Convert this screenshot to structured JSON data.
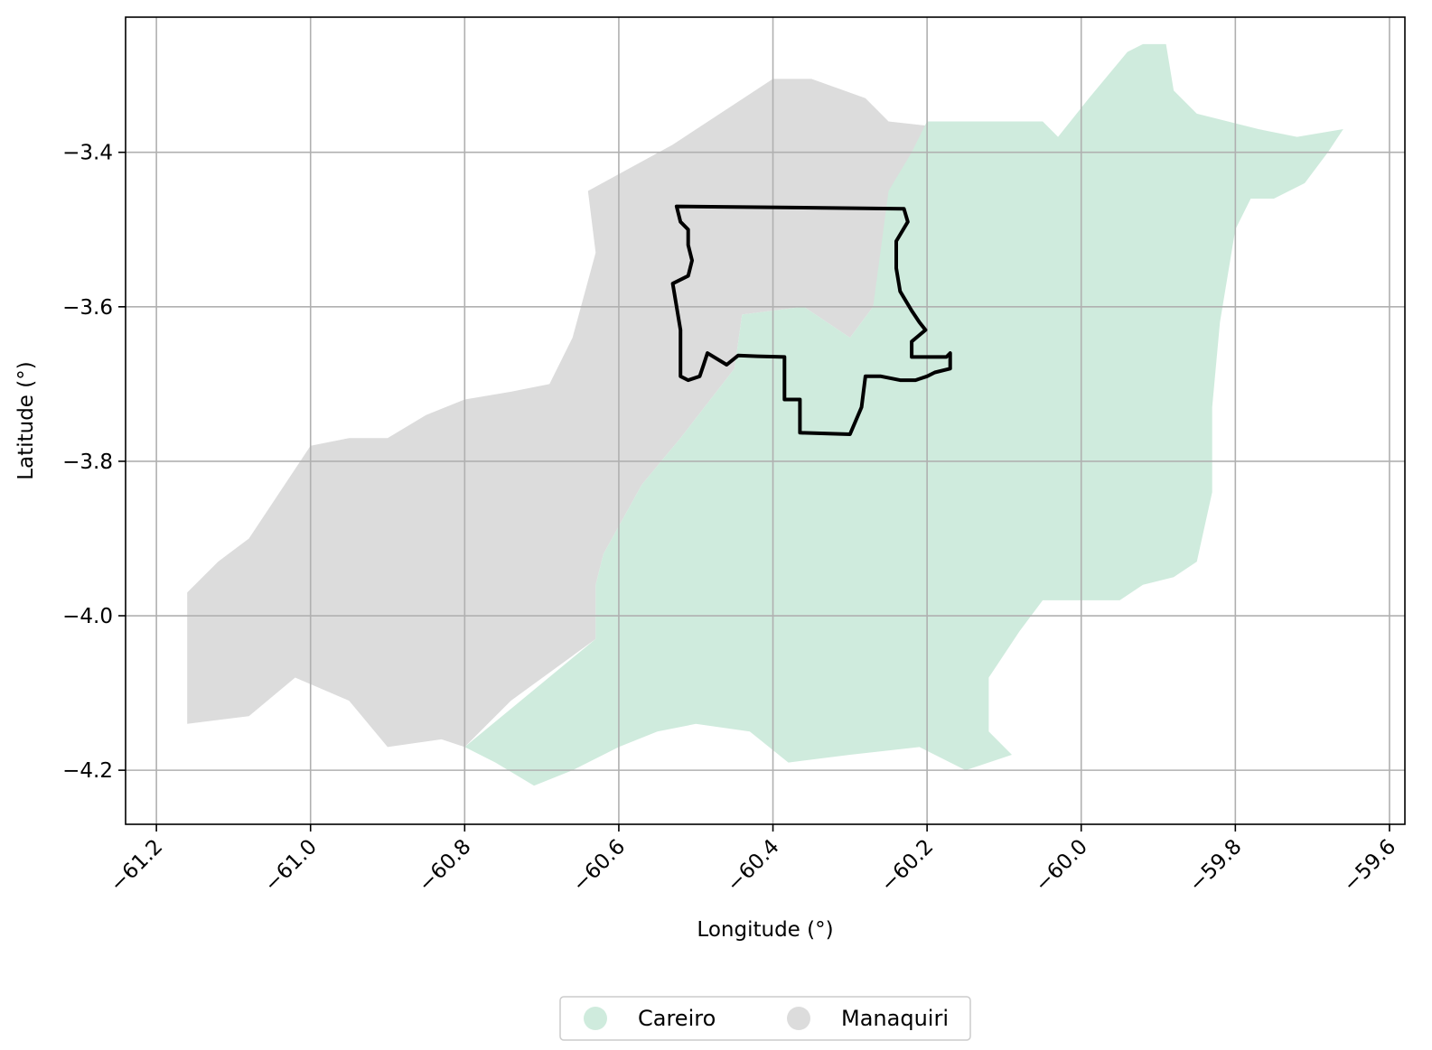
{
  "chart_data": {
    "type": "map",
    "xlabel": "Longitude (°)",
    "ylabel": "Latitude (°)",
    "xlim": [
      -61.24,
      -59.58
    ],
    "ylim": [
      -4.27,
      -3.225
    ],
    "xticks": [
      -61.2,
      -61.0,
      -60.8,
      -60.6,
      -60.4,
      -60.2,
      -60.0,
      -59.8,
      -59.6
    ],
    "yticks": [
      -3.4,
      -3.6,
      -3.8,
      -4.0,
      -4.2
    ],
    "xtick_labels": [
      "−61.2",
      "−61.0",
      "−60.8",
      "−60.6",
      "−60.4",
      "−60.2",
      "−60.0",
      "−59.8",
      "−59.6"
    ],
    "ytick_labels": [
      "−3.4",
      "−3.6",
      "−3.8",
      "−4.0",
      "−4.2"
    ],
    "grid": true,
    "legend_position": "bottom-center",
    "series": [
      {
        "name": "Manaquiri",
        "color": "#dcdcdc",
        "polygon": [
          [
            -60.64,
            -3.45
          ],
          [
            -60.53,
            -3.39
          ],
          [
            -60.4,
            -3.305
          ],
          [
            -60.35,
            -3.305
          ],
          [
            -60.28,
            -3.33
          ],
          [
            -60.25,
            -3.36
          ],
          [
            -60.16,
            -3.37
          ],
          [
            -60.16,
            -3.39
          ],
          [
            -60.24,
            -3.46
          ],
          [
            -60.27,
            -3.6
          ],
          [
            -60.3,
            -3.64
          ],
          [
            -60.36,
            -3.6
          ],
          [
            -60.44,
            -3.61
          ],
          [
            -60.45,
            -3.68
          ],
          [
            -60.52,
            -3.77
          ],
          [
            -60.57,
            -3.83
          ],
          [
            -60.62,
            -3.92
          ],
          [
            -60.63,
            -3.96
          ],
          [
            -60.63,
            -4.03
          ],
          [
            -60.74,
            -4.11
          ],
          [
            -60.8,
            -4.17
          ],
          [
            -60.83,
            -4.16
          ],
          [
            -60.9,
            -4.17
          ],
          [
            -60.95,
            -4.11
          ],
          [
            -61.02,
            -4.08
          ],
          [
            -61.08,
            -4.13
          ],
          [
            -61.16,
            -4.14
          ],
          [
            -61.16,
            -3.97
          ],
          [
            -61.12,
            -3.93
          ],
          [
            -61.08,
            -3.9
          ],
          [
            -61.04,
            -3.84
          ],
          [
            -61.0,
            -3.78
          ],
          [
            -60.95,
            -3.77
          ],
          [
            -60.9,
            -3.77
          ],
          [
            -60.85,
            -3.74
          ],
          [
            -60.8,
            -3.72
          ],
          [
            -60.74,
            -3.71
          ],
          [
            -60.69,
            -3.7
          ],
          [
            -60.66,
            -3.64
          ],
          [
            -60.63,
            -3.53
          ]
        ]
      },
      {
        "name": "Careiro",
        "color": "#cfebdd",
        "polygon": [
          [
            -60.25,
            -3.45
          ],
          [
            -60.22,
            -3.4
          ],
          [
            -60.2,
            -3.36
          ],
          [
            -60.05,
            -3.36
          ],
          [
            -60.03,
            -3.38
          ],
          [
            -59.99,
            -3.33
          ],
          [
            -59.94,
            -3.27
          ],
          [
            -59.92,
            -3.26
          ],
          [
            -59.89,
            -3.26
          ],
          [
            -59.88,
            -3.32
          ],
          [
            -59.85,
            -3.35
          ],
          [
            -59.77,
            -3.37
          ],
          [
            -59.72,
            -3.38
          ],
          [
            -59.66,
            -3.37
          ],
          [
            -59.68,
            -3.4
          ],
          [
            -59.71,
            -3.44
          ],
          [
            -59.75,
            -3.46
          ],
          [
            -59.78,
            -3.46
          ],
          [
            -59.8,
            -3.5
          ],
          [
            -59.82,
            -3.62
          ],
          [
            -59.83,
            -3.73
          ],
          [
            -59.83,
            -3.84
          ],
          [
            -59.85,
            -3.93
          ],
          [
            -59.88,
            -3.95
          ],
          [
            -59.92,
            -3.96
          ],
          [
            -59.95,
            -3.98
          ],
          [
            -59.99,
            -3.98
          ],
          [
            -60.05,
            -3.98
          ],
          [
            -60.08,
            -4.02
          ],
          [
            -60.12,
            -4.08
          ],
          [
            -60.12,
            -4.15
          ],
          [
            -60.09,
            -4.18
          ],
          [
            -60.15,
            -4.2
          ],
          [
            -60.19,
            -4.18
          ],
          [
            -60.21,
            -4.17
          ],
          [
            -60.3,
            -4.18
          ],
          [
            -60.38,
            -4.19
          ],
          [
            -60.43,
            -4.15
          ],
          [
            -60.5,
            -4.14
          ],
          [
            -60.55,
            -4.15
          ],
          [
            -60.6,
            -4.17
          ],
          [
            -60.66,
            -4.2
          ],
          [
            -60.71,
            -4.22
          ],
          [
            -60.76,
            -4.19
          ],
          [
            -60.8,
            -4.17
          ],
          [
            -60.63,
            -4.03
          ],
          [
            -60.63,
            -3.96
          ],
          [
            -60.62,
            -3.92
          ],
          [
            -60.57,
            -3.83
          ],
          [
            -60.52,
            -3.77
          ],
          [
            -60.45,
            -3.68
          ],
          [
            -60.44,
            -3.61
          ],
          [
            -60.36,
            -3.6
          ],
          [
            -60.3,
            -3.64
          ],
          [
            -60.27,
            -3.6
          ]
        ]
      },
      {
        "name": "",
        "color": "#000000",
        "type": "outline",
        "polygon": [
          [
            -60.525,
            -3.47
          ],
          [
            -60.23,
            -3.473
          ],
          [
            -60.225,
            -3.49
          ],
          [
            -60.24,
            -3.515
          ],
          [
            -60.24,
            -3.55
          ],
          [
            -60.235,
            -3.58
          ],
          [
            -60.22,
            -3.605
          ],
          [
            -60.21,
            -3.62
          ],
          [
            -60.202,
            -3.63
          ],
          [
            -60.22,
            -3.645
          ],
          [
            -60.22,
            -3.665
          ],
          [
            -60.175,
            -3.665
          ],
          [
            -60.17,
            -3.66
          ],
          [
            -60.17,
            -3.68
          ],
          [
            -60.19,
            -3.685
          ],
          [
            -60.2,
            -3.69
          ],
          [
            -60.215,
            -3.695
          ],
          [
            -60.235,
            -3.695
          ],
          [
            -60.26,
            -3.69
          ],
          [
            -60.28,
            -3.69
          ],
          [
            -60.285,
            -3.73
          ],
          [
            -60.3,
            -3.765
          ],
          [
            -60.365,
            -3.763
          ],
          [
            -60.365,
            -3.72
          ],
          [
            -60.385,
            -3.72
          ],
          [
            -60.385,
            -3.665
          ],
          [
            -60.42,
            -3.664
          ],
          [
            -60.445,
            -3.663
          ],
          [
            -60.46,
            -3.675
          ],
          [
            -60.485,
            -3.66
          ],
          [
            -60.49,
            -3.675
          ],
          [
            -60.495,
            -3.69
          ],
          [
            -60.51,
            -3.695
          ],
          [
            -60.52,
            -3.69
          ],
          [
            -60.52,
            -3.66
          ],
          [
            -60.52,
            -3.63
          ],
          [
            -60.525,
            -3.6
          ],
          [
            -60.53,
            -3.57
          ],
          [
            -60.51,
            -3.56
          ],
          [
            -60.505,
            -3.54
          ],
          [
            -60.51,
            -3.52
          ],
          [
            -60.51,
            -3.5
          ],
          [
            -60.52,
            -3.49
          ]
        ]
      }
    ]
  },
  "legend": {
    "items": [
      {
        "label": "Careiro",
        "color": "#cfebdd"
      },
      {
        "label": "Manaquiri",
        "color": "#dcdcdc"
      }
    ]
  }
}
